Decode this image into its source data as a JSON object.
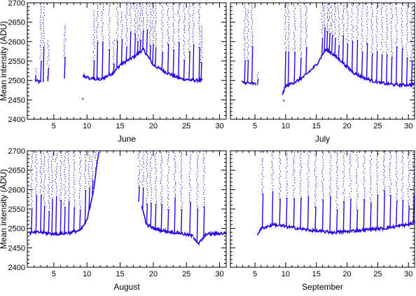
{
  "chart_data": [
    {
      "type": "scatter",
      "xlabel": "June",
      "ylabel": "Mean intensity (ADU)",
      "xlim": [
        1,
        31
      ],
      "ylim": [
        2400,
        2700
      ],
      "xticks": [
        "5",
        "10",
        "15",
        "20",
        "25",
        "30"
      ],
      "yticks": [
        "2400",
        "2450",
        "2500",
        "2550",
        "2600",
        "2650",
        "2700"
      ],
      "color": "#2a00e6",
      "series": [
        {
          "baseline": [
            [
              2.2,
              2500
            ],
            [
              3.0,
              2495
            ],
            [
              9.4,
              2512
            ],
            [
              10.5,
              2505
            ],
            [
              12.0,
              2502
            ],
            [
              14.0,
              2520
            ],
            [
              15.0,
              2540
            ],
            [
              17.0,
              2560
            ],
            [
              18.5,
              2580
            ],
            [
              20.0,
              2540
            ],
            [
              22.0,
              2520
            ],
            [
              24.0,
              2505
            ],
            [
              26.0,
              2500
            ],
            [
              27.4,
              2500
            ]
          ],
          "spikes": [
            [
              2.2,
              2530
            ],
            [
              3.0,
              2700
            ],
            [
              3.4,
              2700
            ],
            [
              4.1,
              2600
            ],
            [
              6.6,
              2640
            ],
            [
              9.5,
              2520
            ],
            [
              11.0,
              2680
            ],
            [
              11.5,
              2700
            ],
            [
              12.3,
              2700
            ],
            [
              13.3,
              2700
            ],
            [
              14.0,
              2600
            ],
            [
              14.5,
              2700
            ],
            [
              15.2,
              2680
            ],
            [
              15.9,
              2700
            ],
            [
              16.5,
              2700
            ],
            [
              17.2,
              2700
            ],
            [
              17.6,
              2700
            ],
            [
              18.0,
              2700
            ],
            [
              18.4,
              2700
            ],
            [
              19.0,
              2700
            ],
            [
              19.5,
              2700
            ],
            [
              19.9,
              2700
            ],
            [
              20.3,
              2700
            ],
            [
              21.3,
              2700
            ],
            [
              22.2,
              2700
            ],
            [
              23.0,
              2700
            ],
            [
              23.8,
              2700
            ],
            [
              24.6,
              2700
            ],
            [
              25.4,
              2700
            ],
            [
              26.0,
              2700
            ],
            [
              26.9,
              2700
            ],
            [
              27.2,
              2640
            ]
          ],
          "outliers": [
            [
              9.3,
              2455
            ],
            [
              4.0,
              2510
            ]
          ]
        }
      ]
    },
    {
      "type": "scatter",
      "xlabel": "July",
      "ylabel": "",
      "xlim": [
        1,
        31
      ],
      "ylim": [
        2400,
        2700
      ],
      "xticks": [
        "5",
        "10",
        "15",
        "20",
        "25",
        "30"
      ],
      "yticks": [],
      "color": "#2a00e6",
      "series": [
        {
          "baseline": [
            [
              2.8,
              2495
            ],
            [
              4.5,
              2492
            ],
            [
              5.2,
              2490
            ],
            [
              9.5,
              2465
            ],
            [
              10.0,
              2485
            ],
            [
              12.0,
              2500
            ],
            [
              13.0,
              2510
            ],
            [
              15.0,
              2540
            ],
            [
              16.5,
              2580
            ],
            [
              17.5,
              2570
            ],
            [
              19.0,
              2550
            ],
            [
              21.0,
              2520
            ],
            [
              23.0,
              2505
            ],
            [
              25.0,
              2495
            ],
            [
              27.0,
              2490
            ],
            [
              29.0,
              2488
            ],
            [
              31.0,
              2490
            ]
          ],
          "spikes": [
            [
              3.3,
              2700
            ],
            [
              3.8,
              2680
            ],
            [
              4.5,
              2700
            ],
            [
              5.4,
              2520
            ],
            [
              9.9,
              2700
            ],
            [
              10.4,
              2700
            ],
            [
              11.4,
              2700
            ],
            [
              12.4,
              2700
            ],
            [
              13.3,
              2700
            ],
            [
              15.9,
              2700
            ],
            [
              16.3,
              2700
            ],
            [
              16.7,
              2700
            ],
            [
              17.1,
              2700
            ],
            [
              17.5,
              2700
            ],
            [
              18.0,
              2700
            ],
            [
              18.6,
              2700
            ],
            [
              19.3,
              2700
            ],
            [
              20.0,
              2700
            ],
            [
              20.8,
              2700
            ],
            [
              21.6,
              2700
            ],
            [
              22.4,
              2700
            ],
            [
              23.2,
              2700
            ],
            [
              24.0,
              2700
            ],
            [
              24.8,
              2700
            ],
            [
              25.6,
              2700
            ],
            [
              26.4,
              2700
            ],
            [
              27.2,
              2700
            ],
            [
              28.0,
              2700
            ],
            [
              28.9,
              2700
            ],
            [
              29.7,
              2700
            ],
            [
              30.5,
              2700
            ]
          ],
          "outliers": [
            [
              9.6,
              2450
            ]
          ]
        }
      ]
    },
    {
      "type": "scatter",
      "xlabel": "August",
      "ylabel": "Mean intensity (ADU)",
      "xlim": [
        1,
        31
      ],
      "ylim": [
        2400,
        2700
      ],
      "xticks": [
        "5",
        "10",
        "15",
        "20",
        "25",
        "30"
      ],
      "yticks": [
        "2400",
        "2450",
        "2500",
        "2550",
        "2600",
        "2650",
        "2700"
      ],
      "color": "#2a00e6",
      "series": [
        {
          "baseline": [
            [
              1.3,
              2488
            ],
            [
              3.0,
              2490
            ],
            [
              5.0,
              2485
            ],
            [
              7.0,
              2488
            ],
            [
              9.0,
              2495
            ],
            [
              10.0,
              2520
            ],
            [
              11.0,
              2600
            ],
            [
              11.8,
              2700
            ],
            [
              18.2,
              2560
            ],
            [
              19.0,
              2510
            ],
            [
              20.0,
              2500
            ],
            [
              22.0,
              2492
            ],
            [
              24.0,
              2488
            ],
            [
              26.0,
              2480
            ],
            [
              26.8,
              2460
            ],
            [
              28.0,
              2485
            ],
            [
              31.0,
              2488
            ]
          ],
          "spikes": [
            [
              1.6,
              2700
            ],
            [
              2.3,
              2700
            ],
            [
              3.0,
              2700
            ],
            [
              3.5,
              2700
            ],
            [
              4.2,
              2700
            ],
            [
              4.7,
              2700
            ],
            [
              5.3,
              2700
            ],
            [
              6.0,
              2700
            ],
            [
              6.6,
              2700
            ],
            [
              7.2,
              2700
            ],
            [
              8.0,
              2700
            ],
            [
              8.9,
              2700
            ],
            [
              9.7,
              2700
            ],
            [
              10.3,
              2700
            ],
            [
              10.8,
              2700
            ],
            [
              11.3,
              2700
            ],
            [
              17.8,
              2700
            ],
            [
              18.4,
              2700
            ],
            [
              19.0,
              2700
            ],
            [
              19.6,
              2700
            ],
            [
              20.3,
              2700
            ],
            [
              21.2,
              2700
            ],
            [
              22.2,
              2700
            ],
            [
              23.2,
              2700
            ],
            [
              24.2,
              2700
            ],
            [
              25.5,
              2700
            ],
            [
              26.6,
              2700
            ],
            [
              27.6,
              2700
            ]
          ],
          "outliers": []
        }
      ]
    },
    {
      "type": "scatter",
      "xlabel": "September",
      "ylabel": "",
      "xlim": [
        1,
        31
      ],
      "ylim": [
        2400,
        2700
      ],
      "xticks": [
        "5",
        "10",
        "15",
        "20",
        "25",
        "30"
      ],
      "yticks": [],
      "color": "#2a00e6",
      "series": [
        {
          "baseline": [
            [
              5.4,
              2485
            ],
            [
              6.0,
              2500
            ],
            [
              8.0,
              2510
            ],
            [
              10.0,
              2505
            ],
            [
              12.0,
              2500
            ],
            [
              14.0,
              2495
            ],
            [
              16.0,
              2492
            ],
            [
              18.0,
              2490
            ],
            [
              20.0,
              2492
            ],
            [
              22.0,
              2495
            ],
            [
              24.0,
              2498
            ],
            [
              26.0,
              2500
            ],
            [
              28.0,
              2505
            ],
            [
              30.0,
              2510
            ],
            [
              31.0,
              2515
            ]
          ],
          "spikes": [
            [
              6.2,
              2680
            ],
            [
              7.8,
              2700
            ],
            [
              9.0,
              2700
            ],
            [
              10.1,
              2700
            ],
            [
              11.3,
              2700
            ],
            [
              12.4,
              2700
            ],
            [
              13.6,
              2700
            ],
            [
              14.8,
              2700
            ],
            [
              16.0,
              2700
            ],
            [
              17.2,
              2700
            ],
            [
              18.3,
              2700
            ],
            [
              19.4,
              2700
            ],
            [
              20.5,
              2700
            ],
            [
              21.6,
              2700
            ],
            [
              22.7,
              2700
            ],
            [
              23.8,
              2700
            ],
            [
              24.9,
              2700
            ],
            [
              26.0,
              2700
            ],
            [
              27.0,
              2700
            ],
            [
              28.0,
              2700
            ],
            [
              29.0,
              2700
            ],
            [
              30.0,
              2700
            ],
            [
              30.8,
              2700
            ]
          ],
          "outliers": [
            [
              6.3,
              2700
            ]
          ]
        }
      ]
    }
  ]
}
